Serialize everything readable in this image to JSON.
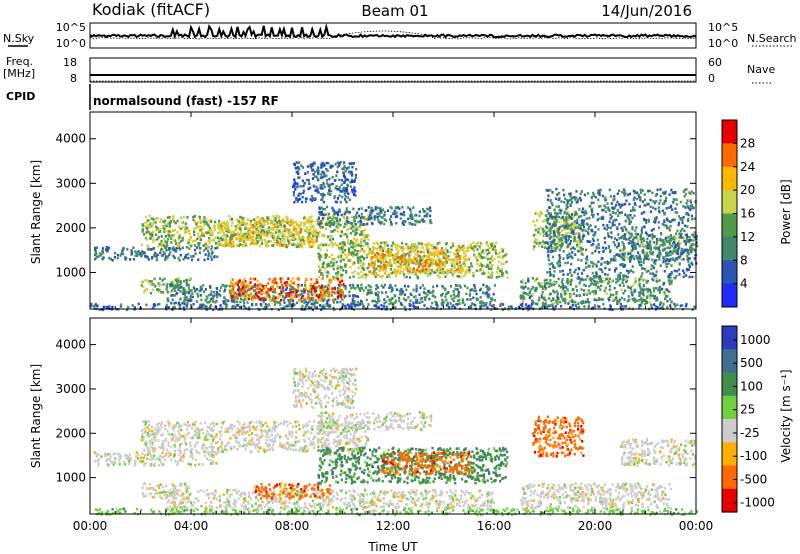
{
  "header": {
    "station": "Kodiak (fitACF)",
    "beam": "Beam 01",
    "date": "14/Jun/2016"
  },
  "summary": {
    "nsky_label": "N.Sky",
    "nsky_ticks": [
      "10^5",
      "10^0"
    ],
    "nsearch_label": "N.Search",
    "nsearch_ticks": [
      "10^5",
      "10^0"
    ],
    "freq_label": [
      "Freq.",
      "[MHz]"
    ],
    "freq_ticks": [
      "18",
      "8"
    ],
    "nave_label": "Nave",
    "nave_ticks": [
      "60",
      "0"
    ],
    "cpid_label": "CPID",
    "cpid_text": "normalsound (fast)  -157 RF"
  },
  "chart_data": [
    {
      "type": "heatmap",
      "name": "power-panel",
      "ylabel": "Slant Range [km]",
      "xlabel": "",
      "x_ticks": [
        "00:00",
        "04:00",
        "08:00",
        "12:00",
        "16:00",
        "20:00",
        "00:00"
      ],
      "xlim_hours": [
        0,
        24
      ],
      "y_ticks": [
        1000,
        2000,
        3000,
        4000
      ],
      "ylim": [
        180,
        4600
      ],
      "colorbar": {
        "label": "Power [dB]",
        "ticks": [
          4,
          8,
          12,
          16,
          20,
          24,
          28
        ],
        "range": [
          0,
          32
        ],
        "colors": [
          "#1f2bff",
          "#2a55b5",
          "#3f8a6a",
          "#4f9b4a",
          "#c8d44a",
          "#ffb800",
          "#ff6a00",
          "#e80000"
        ]
      },
      "regions": [
        {
          "t0": 0.0,
          "t1": 24.0,
          "r0": 190,
          "r1": 330,
          "v": 8
        },
        {
          "t0": 0.1,
          "t1": 5.0,
          "r0": 1300,
          "r1": 1600,
          "v": 9
        },
        {
          "t0": 2.0,
          "t1": 4.0,
          "r0": 550,
          "r1": 900,
          "v": 14
        },
        {
          "t0": 2.0,
          "t1": 11.0,
          "r0": 1600,
          "r1": 2300,
          "v": 16
        },
        {
          "t0": 5.0,
          "t1": 9.0,
          "r0": 1600,
          "r1": 2200,
          "v": 20
        },
        {
          "t0": 3.0,
          "t1": 16.0,
          "r0": 330,
          "r1": 750,
          "v": 10
        },
        {
          "t0": 5.5,
          "t1": 10.0,
          "r0": 400,
          "r1": 900,
          "v": 26
        },
        {
          "t0": 9.0,
          "t1": 16.5,
          "r0": 900,
          "r1": 1700,
          "v": 16
        },
        {
          "t0": 11.0,
          "t1": 15.0,
          "r0": 1000,
          "r1": 1600,
          "v": 22
        },
        {
          "t0": 9.0,
          "t1": 13.5,
          "r0": 2100,
          "r1": 2500,
          "v": 9
        },
        {
          "t0": 8.0,
          "t1": 10.5,
          "r0": 2600,
          "r1": 3500,
          "v": 7
        },
        {
          "t0": 17.0,
          "t1": 23.0,
          "r0": 330,
          "r1": 900,
          "v": 12
        },
        {
          "t0": 17.5,
          "t1": 19.5,
          "r0": 1500,
          "r1": 2400,
          "v": 16
        },
        {
          "t0": 21.0,
          "t1": 24.0,
          "r0": 1300,
          "r1": 1900,
          "v": 12
        },
        {
          "t0": 18.0,
          "t1": 24.0,
          "r0": 900,
          "r1": 2900,
          "v": 9
        }
      ]
    },
    {
      "type": "heatmap",
      "name": "velocity-panel",
      "ylabel": "Slant Range [km]",
      "xlabel": "Time UT",
      "x_ticks": [
        "00:00",
        "04:00",
        "08:00",
        "12:00",
        "16:00",
        "20:00",
        "00:00"
      ],
      "xlim_hours": [
        0,
        24
      ],
      "y_ticks": [
        1000,
        2000,
        3000,
        4000
      ],
      "ylim": [
        180,
        4600
      ],
      "colorbar": {
        "label": "Velocity [m s⁻¹]",
        "ticks": [
          1000,
          500,
          100,
          25,
          -25,
          -100,
          -500,
          -1000
        ],
        "colors": [
          "#2a3dbf",
          "#3f6e8f",
          "#3f8f4a",
          "#6fd040",
          "#cccccc",
          "#ffb000",
          "#ff6a00",
          "#e80000"
        ]
      },
      "regions": [
        {
          "t0": 0.0,
          "t1": 24.0,
          "r0": 190,
          "r1": 330,
          "v": 3
        },
        {
          "t0": 0.1,
          "t1": 5.0,
          "r0": 1300,
          "r1": 1600,
          "v": 4
        },
        {
          "t0": 2.0,
          "t1": 4.0,
          "r0": 550,
          "r1": 900,
          "v": 4
        },
        {
          "t0": 2.0,
          "t1": 11.0,
          "r0": 1600,
          "r1": 2300,
          "v": 4
        },
        {
          "t0": 3.0,
          "t1": 16.0,
          "r0": 330,
          "r1": 750,
          "v": 4
        },
        {
          "t0": 6.5,
          "t1": 9.5,
          "r0": 550,
          "r1": 900,
          "v": 6
        },
        {
          "t0": 9.0,
          "t1": 16.5,
          "r0": 900,
          "r1": 1700,
          "v": 2
        },
        {
          "t0": 11.5,
          "t1": 15.0,
          "r0": 1100,
          "r1": 1600,
          "v": 6
        },
        {
          "t0": 9.0,
          "t1": 13.5,
          "r0": 2100,
          "r1": 2500,
          "v": 4
        },
        {
          "t0": 8.0,
          "t1": 10.5,
          "r0": 2600,
          "r1": 3500,
          "v": 4
        },
        {
          "t0": 17.0,
          "t1": 23.0,
          "r0": 330,
          "r1": 900,
          "v": 4
        },
        {
          "t0": 17.5,
          "t1": 19.5,
          "r0": 1500,
          "r1": 2400,
          "v": 6
        },
        {
          "t0": 21.0,
          "t1": 24.0,
          "r0": 1300,
          "r1": 1900,
          "v": 4
        }
      ]
    }
  ]
}
